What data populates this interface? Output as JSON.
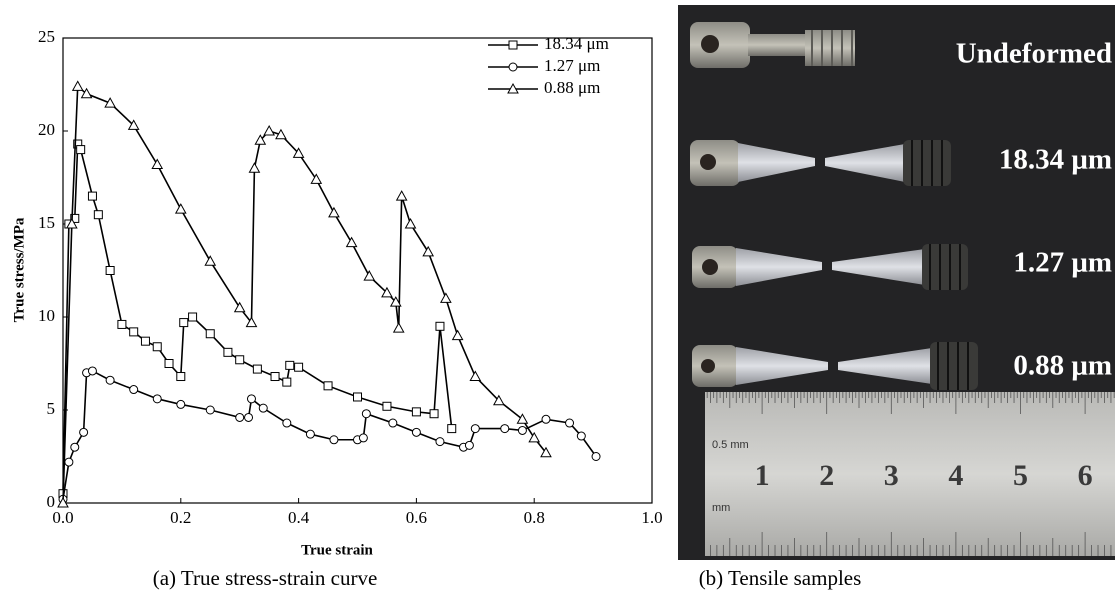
{
  "chart_data": {
    "type": "line",
    "xlabel": "True strain",
    "ylabel": "True stress/MPa",
    "xlim": [
      0,
      1.0
    ],
    "ylim": [
      0,
      25
    ],
    "xticks": [
      {
        "value": 0,
        "label": "0.0"
      },
      {
        "value": 0.2,
        "label": "0.2"
      },
      {
        "value": 0.4,
        "label": "0.4"
      },
      {
        "value": 0.6,
        "label": "0.6"
      },
      {
        "value": 0.8,
        "label": "0.8"
      },
      {
        "value": 1.0,
        "label": "1.0"
      }
    ],
    "yticks": [
      0,
      5,
      10,
      15,
      20,
      25
    ],
    "legend": "upper right",
    "series": [
      {
        "name": "18.34 μm",
        "color": "#000000",
        "marker": "square",
        "x": [
          0,
          0.01,
          0.02,
          0.025,
          0.03,
          0.05,
          0.06,
          0.08,
          0.1,
          0.12,
          0.14,
          0.16,
          0.18,
          0.2,
          0.205,
          0.22,
          0.25,
          0.28,
          0.3,
          0.33,
          0.36,
          0.38,
          0.385,
          0.4,
          0.45,
          0.5,
          0.55,
          0.6,
          0.63,
          0.64,
          0.66
        ],
        "values": [
          0.5,
          15,
          15.3,
          19.3,
          19,
          16.5,
          15.5,
          12.5,
          9.6,
          9.2,
          8.7,
          8.4,
          7.5,
          6.8,
          9.7,
          10,
          9.1,
          8.1,
          7.7,
          7.2,
          6.8,
          6.5,
          7.4,
          7.3,
          6.3,
          5.7,
          5.2,
          4.9,
          4.8,
          9.5,
          4.0
        ]
      },
      {
        "name": "1.27 μm",
        "color": "#000000",
        "marker": "circle",
        "x": [
          0,
          0.01,
          0.02,
          0.035,
          0.04,
          0.05,
          0.08,
          0.12,
          0.16,
          0.2,
          0.25,
          0.3,
          0.315,
          0.32,
          0.34,
          0.38,
          0.42,
          0.46,
          0.5,
          0.51,
          0.515,
          0.56,
          0.6,
          0.64,
          0.68,
          0.69,
          0.7,
          0.75,
          0.78,
          0.82,
          0.86,
          0.88,
          0.905
        ],
        "values": [
          0.2,
          2.2,
          3,
          3.8,
          7.0,
          7.1,
          6.6,
          6.1,
          5.6,
          5.3,
          5.0,
          4.6,
          4.6,
          5.6,
          5.1,
          4.3,
          3.7,
          3.4,
          3.4,
          3.5,
          4.8,
          4.3,
          3.8,
          3.3,
          3.0,
          3.1,
          4.0,
          4.0,
          3.9,
          4.5,
          4.3,
          3.6,
          2.5
        ]
      },
      {
        "name": "0.88 μm",
        "color": "#000000",
        "marker": "triangle",
        "x": [
          0,
          0.015,
          0.025,
          0.04,
          0.08,
          0.12,
          0.16,
          0.2,
          0.25,
          0.3,
          0.32,
          0.325,
          0.335,
          0.35,
          0.37,
          0.4,
          0.43,
          0.46,
          0.49,
          0.52,
          0.55,
          0.565,
          0.57,
          0.575,
          0.59,
          0.62,
          0.65,
          0.67,
          0.7,
          0.74,
          0.78,
          0.8,
          0.82
        ],
        "values": [
          0,
          15,
          22.4,
          22,
          21.5,
          20.3,
          18.2,
          15.8,
          13,
          10.5,
          9.7,
          18,
          19.5,
          20,
          19.8,
          18.8,
          17.4,
          15.6,
          14,
          12.2,
          11.3,
          10.8,
          9.4,
          16.5,
          15,
          13.5,
          11,
          9,
          6.8,
          5.5,
          4.5,
          3.5,
          2.7
        ]
      }
    ]
  },
  "captions": [
    "(a) True stress-strain curve",
    "(b) Tensile samples"
  ],
  "photo": {
    "labels": [
      "Undeformed",
      "18.34 μm",
      "1.27 μm",
      "0.88 μm"
    ],
    "ruler": {
      "numbers": [
        "1",
        "2",
        "3",
        "4",
        "5",
        "6"
      ],
      "units": [
        "0.5 mm",
        "mm"
      ]
    }
  }
}
